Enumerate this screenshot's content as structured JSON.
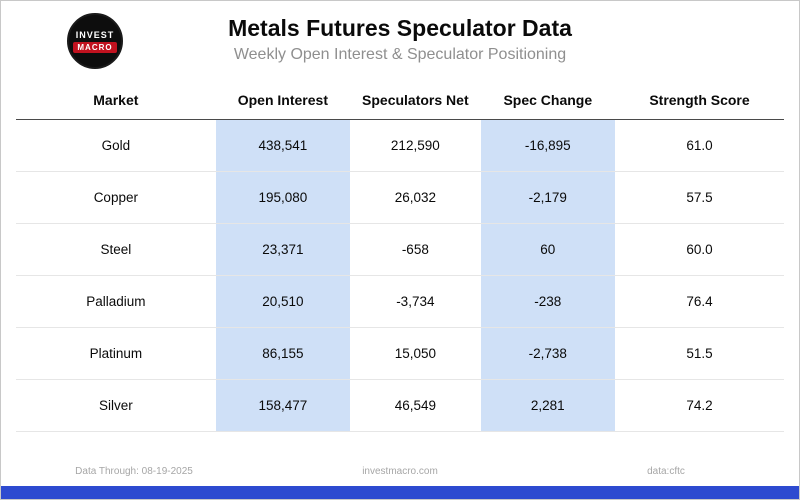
{
  "header": {
    "title": "Metals Futures Speculator Data",
    "subtitle": "Weekly Open Interest & Speculator Positioning",
    "logo": {
      "line1": "INVEST",
      "line2": "MACRO"
    }
  },
  "table": {
    "headers": [
      "Market",
      "Open Interest",
      "Speculators Net",
      "Spec Change",
      "Strength Score"
    ],
    "rows": [
      {
        "market": "Gold",
        "open_interest": "438,541",
        "speculators_net": "212,590",
        "spec_change": "-16,895",
        "strength_score": "61.0"
      },
      {
        "market": "Copper",
        "open_interest": "195,080",
        "speculators_net": "26,032",
        "spec_change": "-2,179",
        "strength_score": "57.5"
      },
      {
        "market": "Steel",
        "open_interest": "23,371",
        "speculators_net": "-658",
        "spec_change": "60",
        "strength_score": "60.0"
      },
      {
        "market": "Palladium",
        "open_interest": "20,510",
        "speculators_net": "-3,734",
        "spec_change": "-238",
        "strength_score": "76.4"
      },
      {
        "market": "Platinum",
        "open_interest": "86,155",
        "speculators_net": "15,050",
        "spec_change": "-2,738",
        "strength_score": "51.5"
      },
      {
        "market": "Silver",
        "open_interest": "158,477",
        "speculators_net": "46,549",
        "spec_change": "2,281",
        "strength_score": "74.2"
      }
    ]
  },
  "footer": {
    "data_through": "Data Through: 08-19-2025",
    "site": "investmacro.com",
    "source": "data:cftc"
  },
  "colors": {
    "highlight": "#cfe0f7",
    "accent_bar": "#2d4ad0",
    "logo_red": "#c1121f"
  }
}
